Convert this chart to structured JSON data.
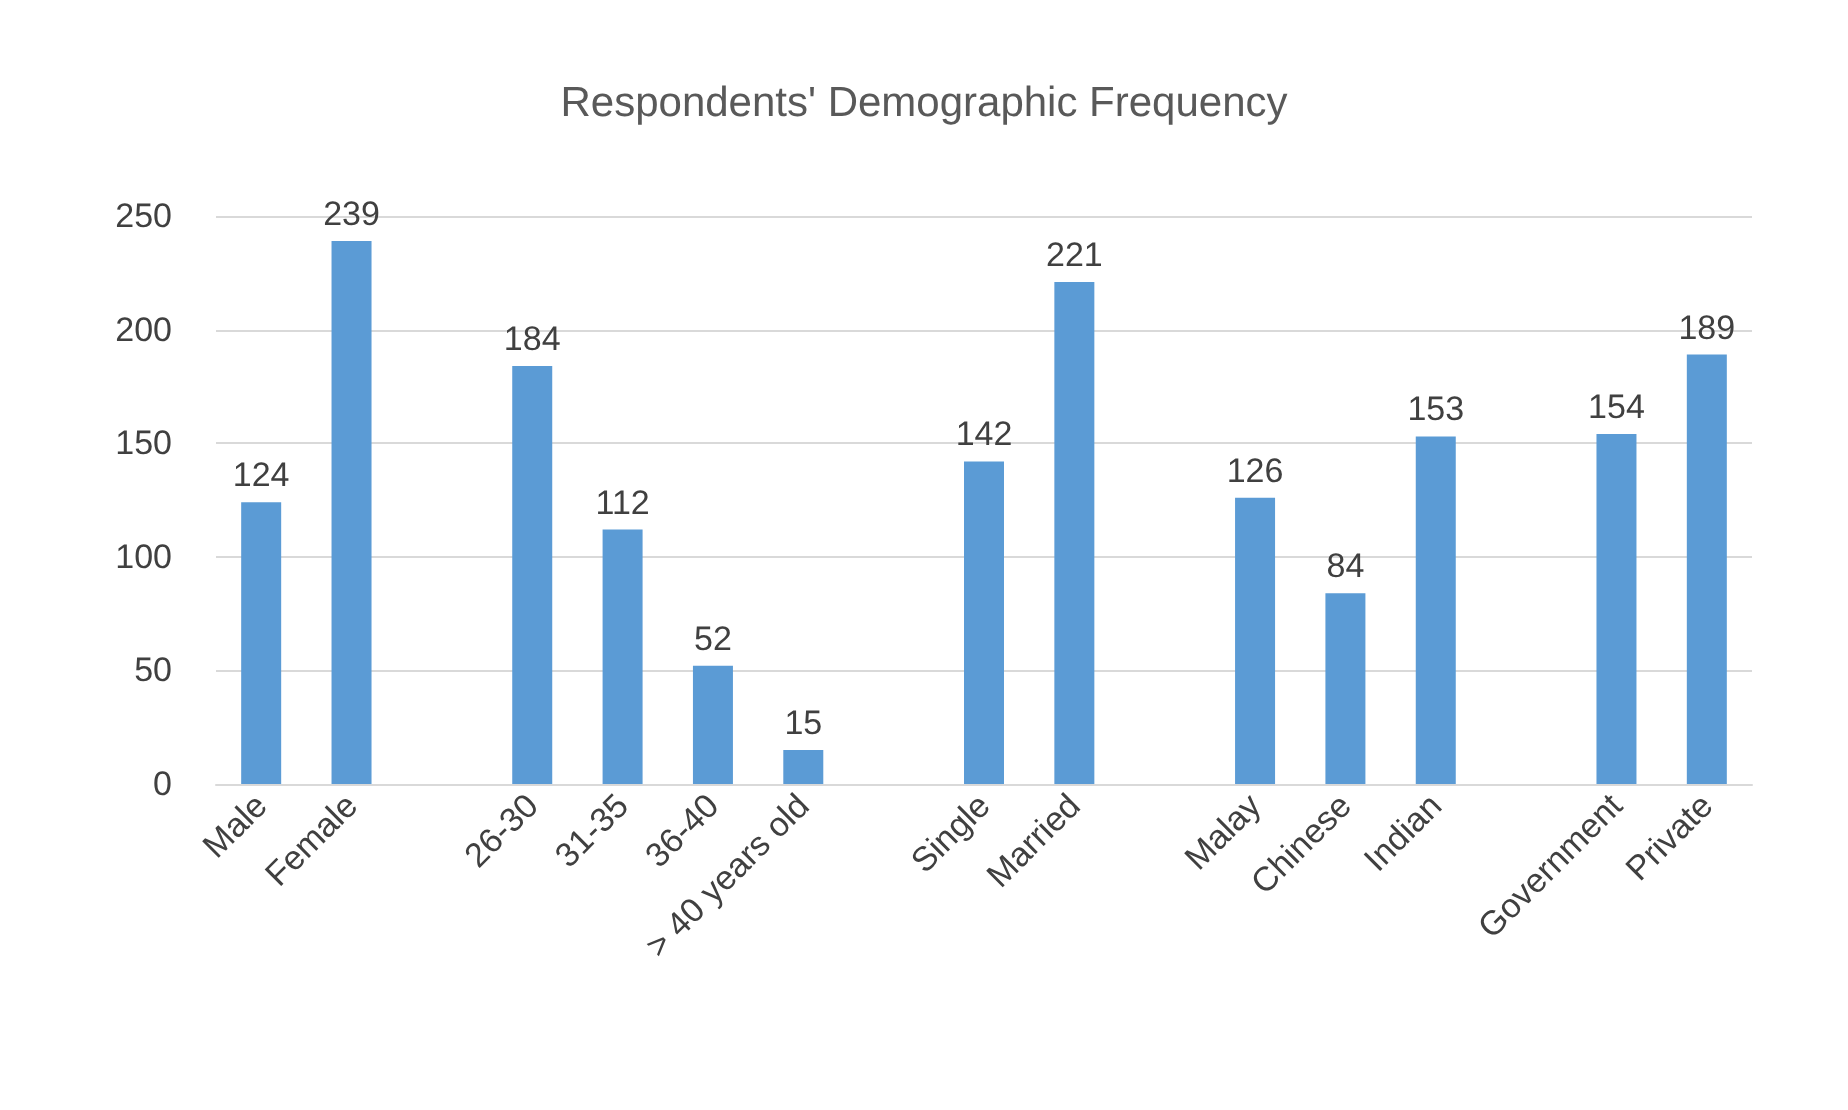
{
  "chart_data": {
    "type": "bar",
    "title": "Respondents' Demographic Frequency",
    "categories": [
      "Male",
      "Female",
      null,
      "26-30",
      "31-35",
      "36-40",
      "> 40 years old",
      null,
      "Single",
      "Married",
      null,
      "Malay",
      "Chinese",
      "Indian",
      null,
      "Government",
      "Private"
    ],
    "values": [
      124,
      239,
      null,
      184,
      112,
      52,
      15,
      null,
      142,
      221,
      null,
      126,
      84,
      153,
      null,
      154,
      189
    ],
    "color": "#5b9bd5",
    "ylim": [
      0,
      250
    ],
    "yticks": [
      0,
      50,
      100,
      150,
      200,
      250
    ],
    "grid": "y",
    "data_labels": true
  }
}
